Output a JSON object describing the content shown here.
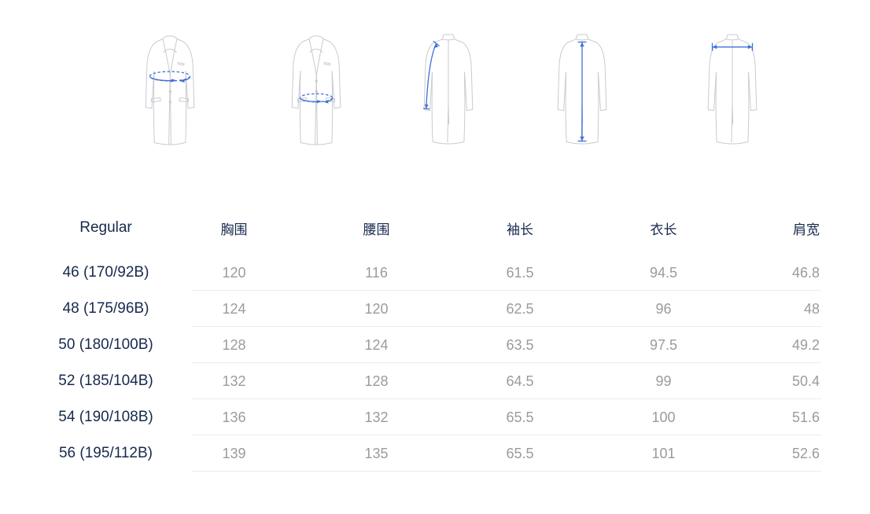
{
  "colors": {
    "accent_blue": "#3e70d6",
    "coat_outline": "#c9cbd0",
    "heading_navy": "#17294d",
    "value_gray": "#9b9b9b",
    "divider": "#ebebee",
    "background": "#ffffff"
  },
  "measurement_diagrams": {
    "items": [
      {
        "id": "chest",
        "measure": "胸围",
        "view": "front-coat",
        "indicator": "chest-girth-ellipse"
      },
      {
        "id": "waist",
        "measure": "腰围",
        "view": "front-coat",
        "indicator": "waist-girth-ellipse"
      },
      {
        "id": "sleeve",
        "measure": "袖长",
        "view": "back-coat",
        "indicator": "sleeve-length-line"
      },
      {
        "id": "length",
        "measure": "衣长",
        "view": "back-coat",
        "indicator": "body-length-line"
      },
      {
        "id": "shoulder",
        "measure": "肩宽",
        "view": "back-coat",
        "indicator": "shoulder-width-line"
      }
    ]
  },
  "size_table": {
    "fit_label": "Regular",
    "columns": [
      "胸围",
      "腰围",
      "袖长",
      "衣长",
      "肩宽"
    ],
    "rows": [
      {
        "size": "46 (170/92B)",
        "values": [
          "120",
          "116",
          "61.5",
          "94.5",
          "46.8"
        ]
      },
      {
        "size": "48 (175/96B)",
        "values": [
          "124",
          "120",
          "62.5",
          "96",
          "48"
        ]
      },
      {
        "size": "50 (180/100B)",
        "values": [
          "128",
          "124",
          "63.5",
          "97.5",
          "49.2"
        ]
      },
      {
        "size": "52 (185/104B)",
        "values": [
          "132",
          "128",
          "64.5",
          "99",
          "50.4"
        ]
      },
      {
        "size": "54 (190/108B)",
        "values": [
          "136",
          "132",
          "65.5",
          "100",
          "51.6"
        ]
      },
      {
        "size": "56 (195/112B)",
        "values": [
          "139",
          "135",
          "65.5",
          "101",
          "52.6"
        ]
      }
    ]
  }
}
